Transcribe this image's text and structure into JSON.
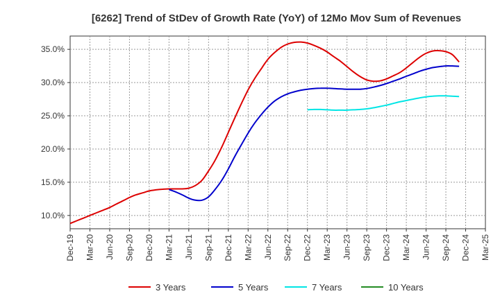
{
  "chart_data": {
    "type": "line",
    "title": "[6262]  Trend of StDev of Growth Rate (YoY) of 12Mo Mov Sum of Revenues",
    "xlabel": "",
    "ylabel": "",
    "ylim": [
      8.0,
      37.0
    ],
    "y_ticks": [
      10.0,
      15.0,
      20.0,
      25.0,
      30.0,
      35.0
    ],
    "y_tick_labels": [
      "10.0%",
      "15.0%",
      "20.0%",
      "25.0%",
      "30.0%",
      "35.0%"
    ],
    "x_tick_labels": [
      "Dec-19",
      "Mar-20",
      "Jun-20",
      "Sep-20",
      "Dec-20",
      "Mar-21",
      "Jun-21",
      "Sep-21",
      "Dec-21",
      "Mar-22",
      "Jun-22",
      "Sep-22",
      "Dec-22",
      "Mar-23",
      "Jun-23",
      "Sep-23",
      "Dec-23",
      "Mar-24",
      "Jun-24",
      "Sep-24",
      "Dec-24",
      "Mar-25"
    ],
    "grid": true,
    "legend_position": "bottom",
    "series": [
      {
        "name": "3 Years",
        "color": "#dd0000",
        "x": [
          0,
          0.33,
          0.67,
          1,
          1.33,
          1.67,
          2,
          2.33,
          2.67,
          3,
          3.33,
          3.67,
          4,
          4.33,
          4.67,
          5,
          5.33,
          5.67,
          6,
          6.33,
          6.67,
          7,
          7.33,
          7.67,
          8,
          8.33,
          8.67,
          9,
          9.33,
          9.67,
          10,
          10.33,
          10.67,
          11,
          11.33,
          11.67,
          12,
          12.33,
          12.67,
          13,
          13.33,
          13.67,
          14,
          14.33,
          14.67,
          15,
          15.33,
          15.67,
          16,
          16.33,
          16.67,
          17,
          17.33,
          17.67,
          18,
          18.33,
          18.67,
          19,
          19.33,
          19.67,
          20
        ],
        "values": [
          8.8,
          9.2,
          9.6,
          10.0,
          10.4,
          10.8,
          11.2,
          11.7,
          12.2,
          12.7,
          13.1,
          13.4,
          13.7,
          13.85,
          13.95,
          14.0,
          14.0,
          14.0,
          14.1,
          14.5,
          15.3,
          16.7,
          18.3,
          20.3,
          22.5,
          24.7,
          26.9,
          28.9,
          30.6,
          32.1,
          33.5,
          34.5,
          35.3,
          35.8,
          36.05,
          36.1,
          35.95,
          35.6,
          35.15,
          34.6,
          33.9,
          33.2,
          32.4,
          31.6,
          30.9,
          30.4,
          30.2,
          30.25,
          30.55,
          31.0,
          31.5,
          32.2,
          33.0,
          33.8,
          34.4,
          34.75,
          34.8,
          34.65,
          34.2,
          33.1,
          null
        ],
        "x_end": 19.67
      },
      {
        "name": "5 Years",
        "color": "#0000cc",
        "x": [
          5,
          5.33,
          5.67,
          6,
          6.33,
          6.67,
          7,
          7.33,
          7.67,
          8,
          8.33,
          8.67,
          9,
          9.33,
          9.67,
          10,
          10.33,
          10.67,
          11,
          11.33,
          11.67,
          12,
          12.33,
          12.67,
          13,
          13.33,
          13.67,
          14,
          14.33,
          14.67,
          15,
          15.33,
          15.67,
          16,
          16.33,
          16.67,
          17,
          17.33,
          17.67,
          18,
          18.33,
          18.67,
          19,
          19.33,
          19.67
        ],
        "values": [
          13.9,
          13.55,
          13.1,
          12.6,
          12.3,
          12.3,
          12.8,
          13.9,
          15.3,
          17.0,
          18.9,
          20.7,
          22.4,
          23.9,
          25.2,
          26.3,
          27.2,
          27.85,
          28.3,
          28.6,
          28.85,
          29.0,
          29.1,
          29.15,
          29.15,
          29.1,
          29.05,
          29.0,
          29.0,
          29.0,
          29.1,
          29.3,
          29.55,
          29.85,
          30.2,
          30.55,
          30.95,
          31.3,
          31.7,
          32.0,
          32.25,
          32.4,
          32.5,
          32.5,
          32.45
        ]
      },
      {
        "name": "7 Years",
        "color": "#00e5e5",
        "x": [
          12,
          12.33,
          12.67,
          13,
          13.33,
          13.67,
          14,
          14.33,
          14.67,
          15,
          15.33,
          15.67,
          16,
          16.33,
          16.67,
          17,
          17.33,
          17.67,
          18,
          18.33,
          18.67,
          19,
          19.33,
          19.67
        ],
        "values": [
          25.9,
          25.95,
          25.95,
          25.9,
          25.85,
          25.85,
          25.85,
          25.9,
          25.95,
          26.05,
          26.2,
          26.4,
          26.6,
          26.85,
          27.1,
          27.3,
          27.5,
          27.7,
          27.85,
          27.95,
          28.0,
          28.0,
          27.95,
          27.9
        ]
      },
      {
        "name": "10 Years",
        "color": "#228b22",
        "x": [],
        "values": []
      }
    ]
  }
}
